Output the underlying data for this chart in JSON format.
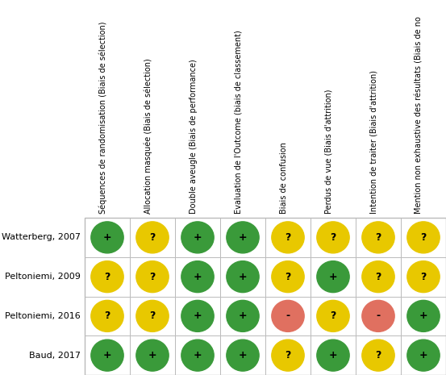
{
  "studies": [
    "Watterberg, 2007",
    "Peltoniemi, 2009",
    "Peltoniemi, 2016",
    "Baud, 2017"
  ],
  "columns": [
    "Séquences de randomisation (Biais de sélection)",
    "Allocation masquée (Biais de sélection)",
    "Double aveugle (Biais de performance)",
    "Evaluation de l'Outcome (biais de classement)",
    "Biais de confusion",
    "Perdus de vue (Biais d'attrition)",
    "Intention de traiter (Biais d'attrition)",
    "Mention non exhaustive des résultats (Biais de no"
  ],
  "grid": [
    [
      "+",
      "?",
      "+",
      "+",
      "?",
      "?",
      "?",
      "?"
    ],
    [
      "?",
      "?",
      "+",
      "+",
      "?",
      "+",
      "?",
      "?"
    ],
    [
      "?",
      "?",
      "+",
      "+",
      "-",
      "?",
      "-",
      "+"
    ],
    [
      "+",
      "+",
      "+",
      "+",
      "?",
      "+",
      "?",
      "+"
    ]
  ],
  "green_color": "#3a9a3a",
  "yellow_color": "#e8c800",
  "red_color": "#e07060",
  "cell_bg": "#ffffff",
  "grid_line_color": "#bbbbbb",
  "text_color": "#000000",
  "header_fontsize": 7.0,
  "study_fontsize": 8.0,
  "symbol_fontsize": 9,
  "fig_width": 5.53,
  "fig_height": 4.65,
  "dpi": 100
}
